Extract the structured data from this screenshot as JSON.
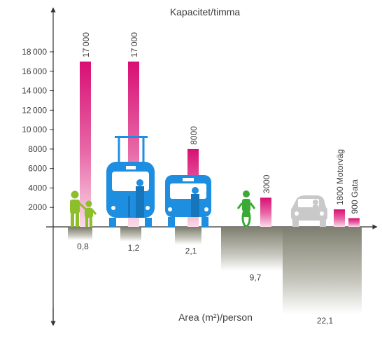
{
  "chart_data": {
    "type": "bar",
    "ylabel_top": "Kapacitet/timma",
    "ylabel_bottom": "Area (m²)/person",
    "ylim": [
      0,
      18000
    ],
    "yticks": [
      "2000",
      "4000",
      "6000",
      "8000",
      "10 000",
      "12 000",
      "14 000",
      "16 000",
      "18 000"
    ],
    "categories": [
      "pedestrians",
      "tram",
      "bus",
      "bicycle",
      "car"
    ],
    "capacity_bars": [
      {
        "category": "pedestrians",
        "value": 17000,
        "label": "17 000"
      },
      {
        "category": "tram",
        "value": 17000,
        "label": "17 000"
      },
      {
        "category": "bus",
        "value": 8000,
        "label": "8000"
      },
      {
        "category": "bicycle",
        "value": 3000,
        "label": "3000"
      },
      {
        "category": "car",
        "value": 1800,
        "label": "1800 Motorväg"
      },
      {
        "category": "car",
        "value": 900,
        "label": "900 Gata"
      }
    ],
    "area_bars": [
      {
        "category": "pedestrians",
        "value": 0.8,
        "label": "0,8"
      },
      {
        "category": "tram",
        "value": 1.2,
        "label": "1,2"
      },
      {
        "category": "bus",
        "value": 2.1,
        "label": "2,1"
      },
      {
        "category": "bicycle",
        "value": 9.7,
        "label": "9,7"
      },
      {
        "category": "car",
        "value": 22.1,
        "label": "22,1"
      }
    ],
    "colors": {
      "capacity": "#e0107a",
      "area": "#8a8a7c",
      "pedestrian_icon": "#8dbf2a",
      "bike_icon": "#3aa935",
      "vehicle_icon": "#1e8fe0",
      "car_icon": "#c9c9c9",
      "axis": "#333333"
    }
  }
}
